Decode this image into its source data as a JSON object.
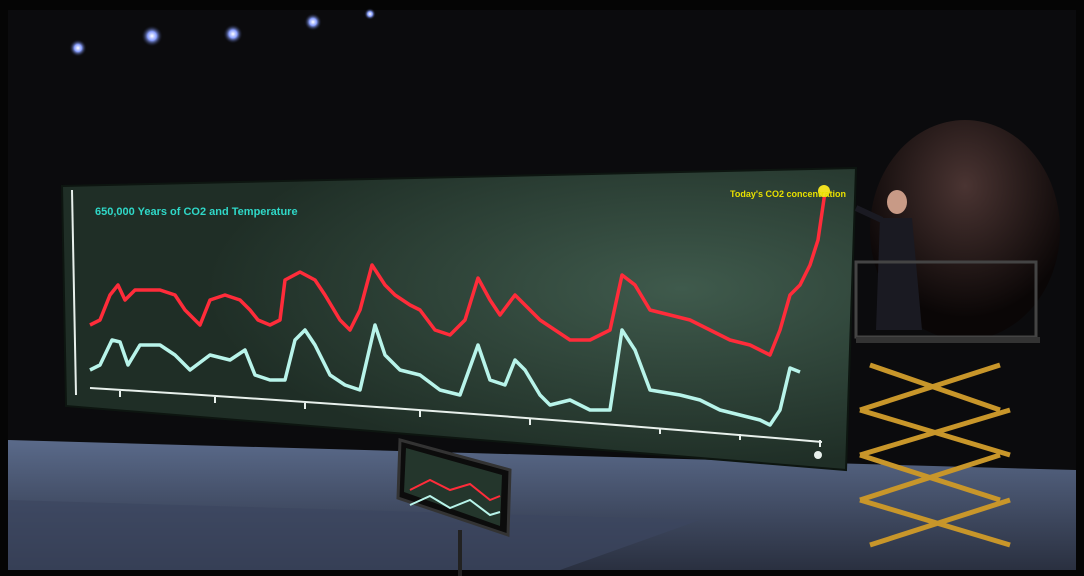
{
  "title": "650,000 Years of CO2 and Temperature",
  "annotation": "Today's CO2 concentration"
}
